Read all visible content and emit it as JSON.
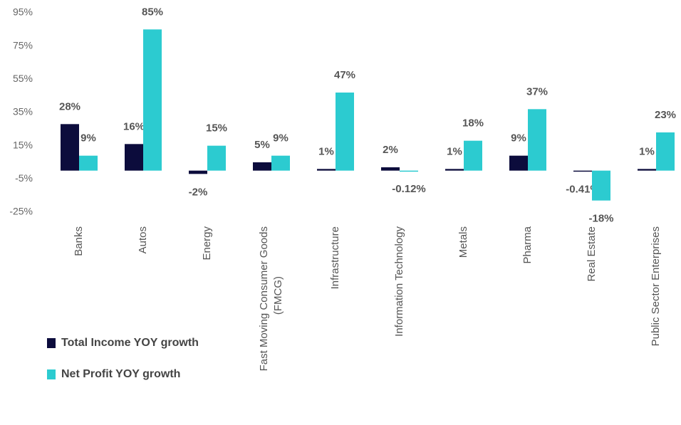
{
  "chart_data": {
    "type": "bar",
    "categories": [
      "Banks",
      "Autos",
      "Energy",
      "Fast Moving Consumer Goods (FMCG)",
      "Infrastructure",
      "Information Technology",
      "Metals",
      "Pharma",
      "Real Estate",
      "Public Sector Enterprises"
    ],
    "series": [
      {
        "name": "Total Income YOY growth",
        "color": "#0c0c3c",
        "values": [
          28,
          16,
          -2,
          5,
          1,
          2,
          1,
          9,
          -0.41,
          1
        ],
        "value_labels": [
          "28%",
          "16%",
          "-2%",
          "5%",
          "1%",
          "2%",
          "1%",
          "9%",
          "-0.41%",
          "1%"
        ]
      },
      {
        "name": "Net Profit YOY growth",
        "color": "#2ccbd0",
        "values": [
          9,
          85,
          15,
          9,
          47,
          -0.12,
          18,
          37,
          -18,
          23
        ],
        "value_labels": [
          "9%",
          "85%",
          "15%",
          "9%",
          "47%",
          "-0.12%",
          "18%",
          "37%",
          "-18%",
          "23%"
        ]
      }
    ],
    "ylim": [
      -25,
      95
    ],
    "yticks": [
      {
        "value": -25,
        "label": "-25%"
      },
      {
        "value": -5,
        "label": "-5%"
      },
      {
        "value": 15,
        "label": "15%"
      },
      {
        "value": 35,
        "label": "35%"
      },
      {
        "value": 55,
        "label": "55%"
      },
      {
        "value": 75,
        "label": "75%"
      },
      {
        "value": 95,
        "label": "95%"
      }
    ],
    "grid": false,
    "legend": "bottom-left"
  }
}
